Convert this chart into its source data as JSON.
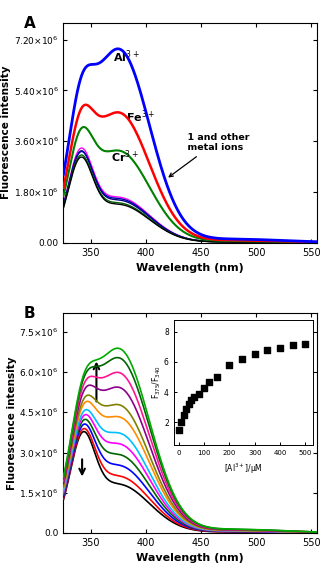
{
  "panel_A": {
    "title": "A",
    "ylabel": "Fluorescence intensity",
    "xlabel": "Wavelength (nm)",
    "xlim": [
      325,
      555
    ],
    "ylim": [
      0,
      7800000.0
    ],
    "yticks": [
      0.0,
      1800000.0,
      3600000.0,
      5400000.0,
      7200000.0
    ],
    "xticks": [
      350,
      400,
      450,
      500,
      550
    ]
  },
  "panel_B": {
    "title": "B",
    "ylabel": "Fluorescence intensity",
    "xlabel": "Wavelength (nm)",
    "xlim": [
      325,
      555
    ],
    "ylim": [
      0,
      8200000.0
    ],
    "yticks": [
      0.0,
      1500000.0,
      3000000.0,
      4500000.0,
      6000000.0,
      7500000.0
    ],
    "xticks": [
      350,
      400,
      450,
      500,
      550
    ],
    "inset": {
      "xlim": [
        -20,
        530
      ],
      "ylim": [
        0.5,
        8.8
      ],
      "yticks": [
        2,
        4,
        6,
        8
      ],
      "xticks": [
        0,
        100,
        200,
        300,
        400,
        500
      ],
      "al_conc": [
        0,
        10,
        20,
        30,
        40,
        50,
        60,
        80,
        100,
        120,
        150,
        200,
        250,
        300,
        350,
        400,
        450,
        500
      ],
      "ratio": [
        1.5,
        2.0,
        2.5,
        2.9,
        3.2,
        3.5,
        3.7,
        3.9,
        4.3,
        4.7,
        5.0,
        5.8,
        6.2,
        6.55,
        6.8,
        6.9,
        7.1,
        7.2
      ]
    }
  },
  "colors_A": {
    "Al": "#0000ff",
    "Fe": "#ff0000",
    "Cr": "#008000",
    "others": [
      "#ff00ff",
      "#000080",
      "#0000aa",
      "#006400",
      "#000000"
    ]
  },
  "colors_B_order": [
    "#000000",
    "#ff0000",
    "#0000ff",
    "#006400",
    "#ff00ff",
    "#00bfff",
    "#ff8c00",
    "#808000",
    "#8b008b",
    "#ff1493",
    "#006400",
    "#00aa00"
  ]
}
